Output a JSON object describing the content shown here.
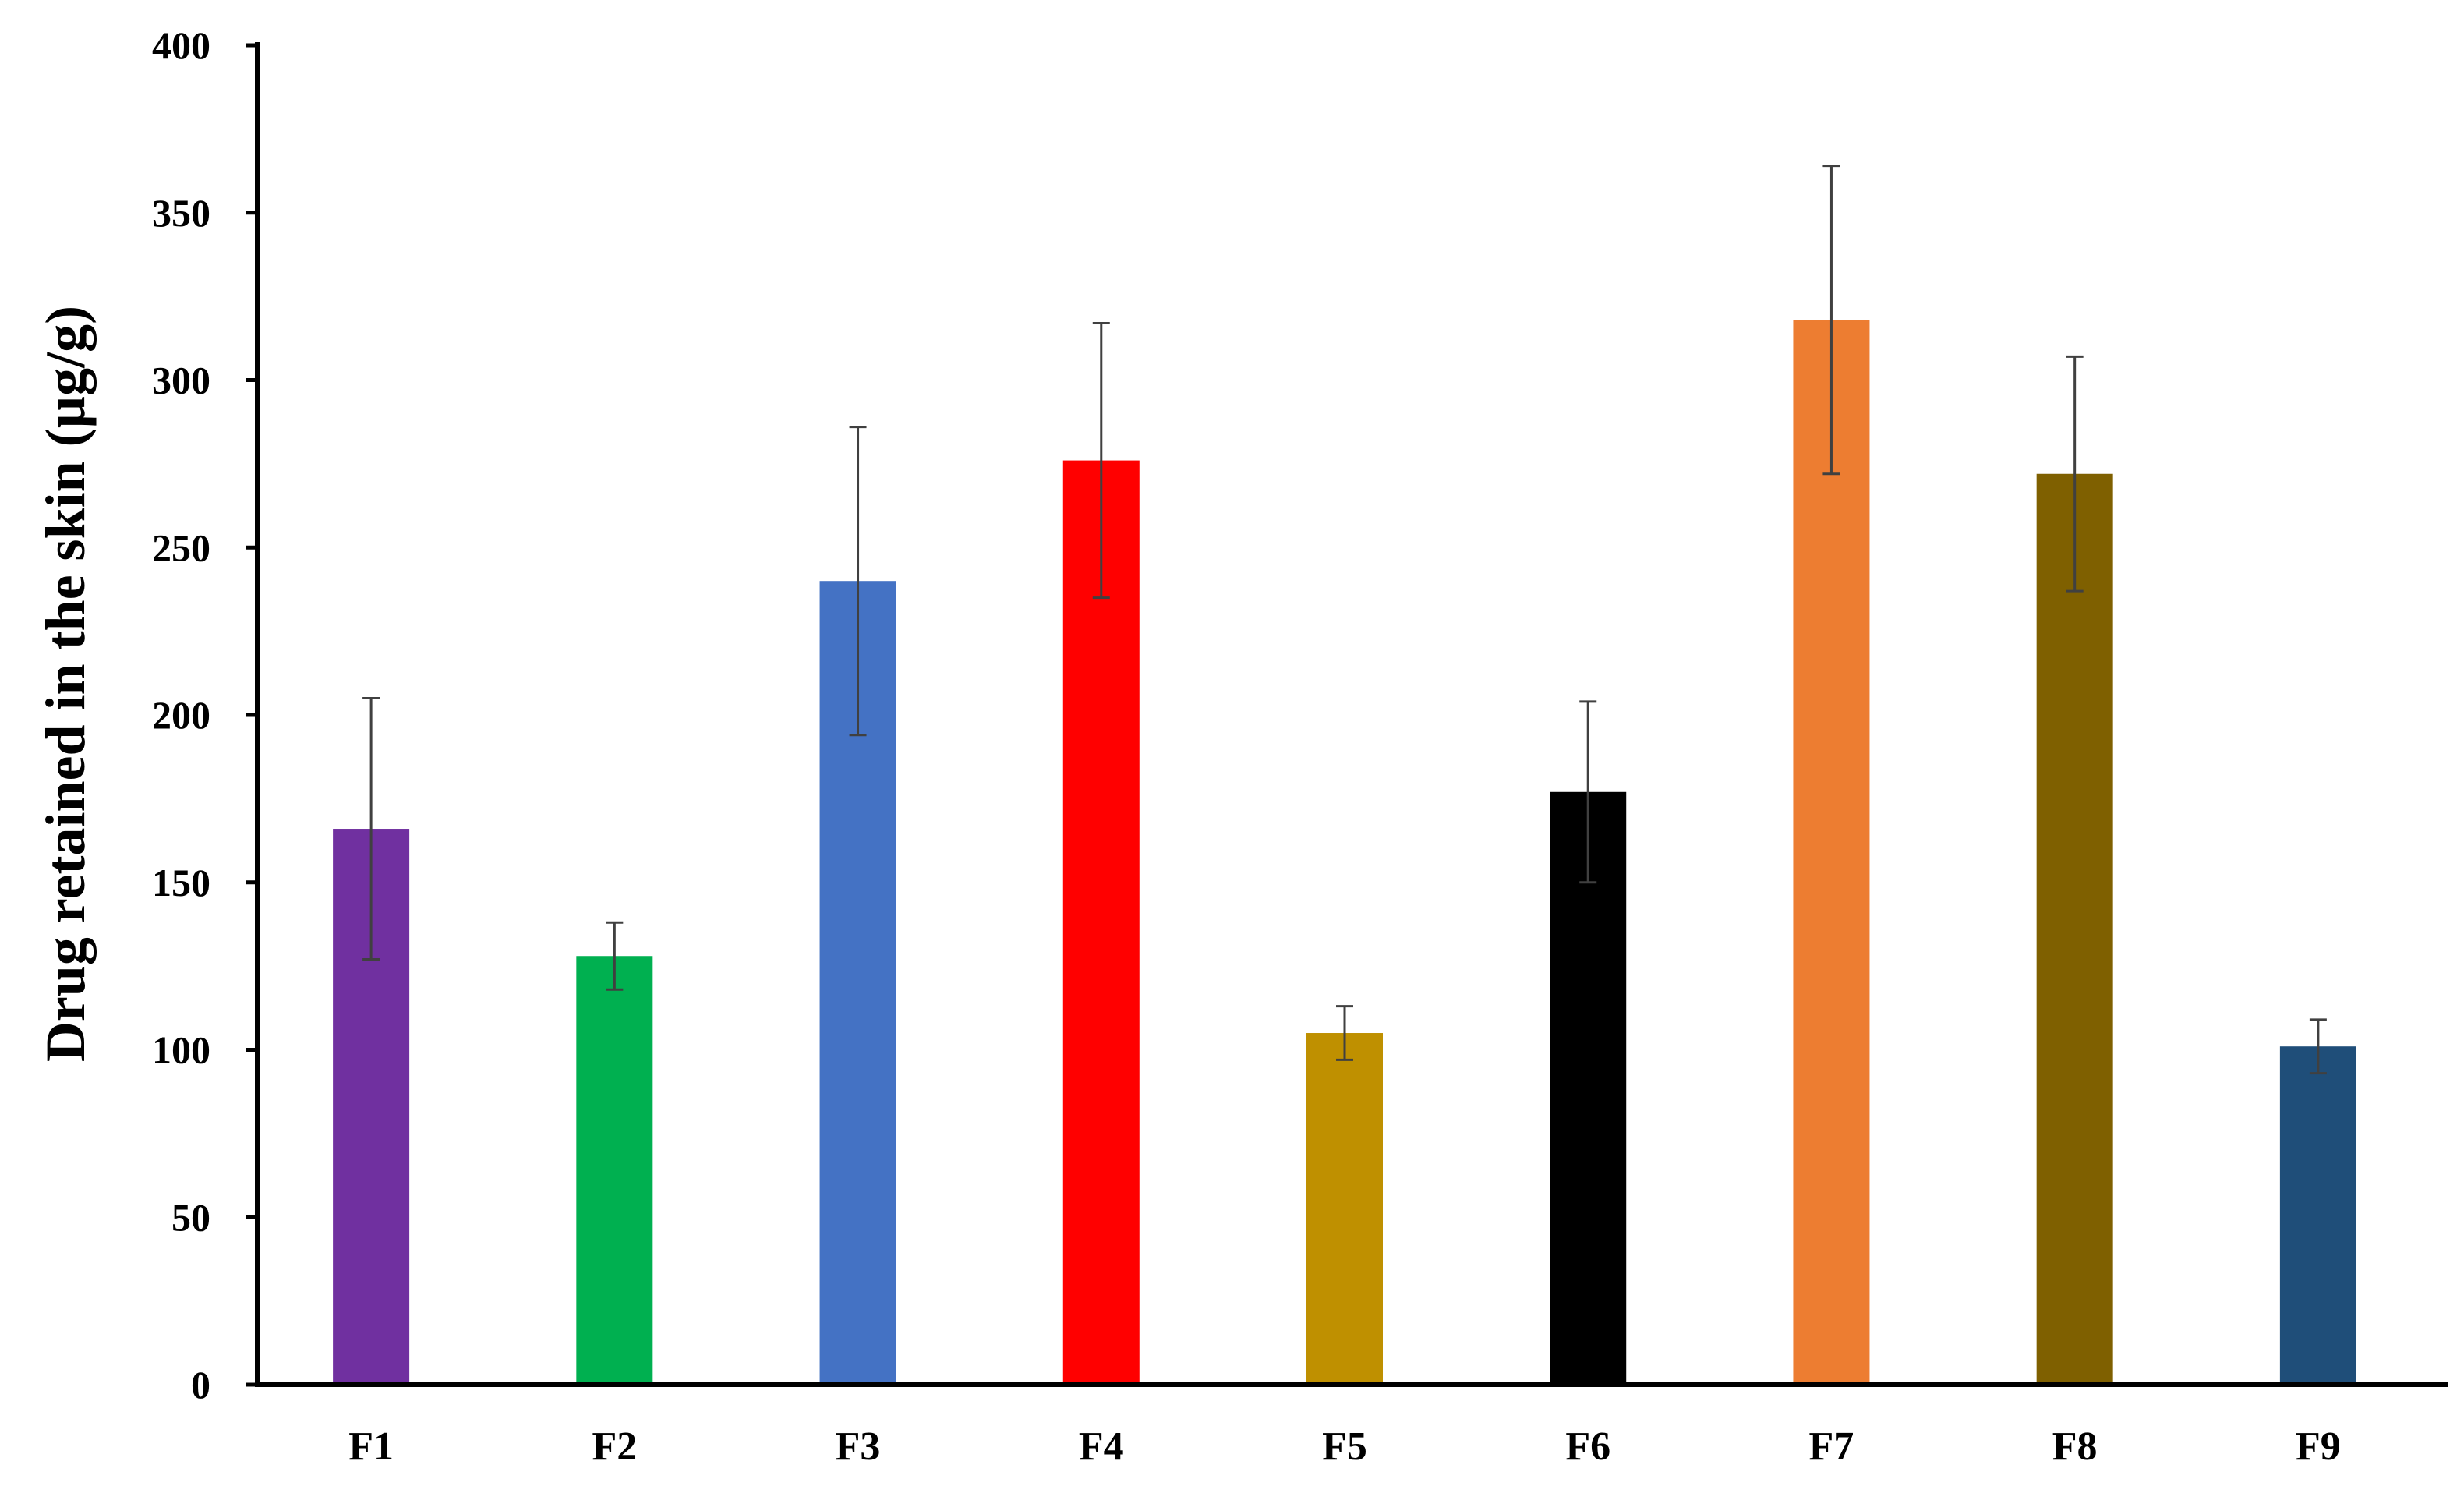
{
  "chart_data": {
    "type": "bar",
    "title": "",
    "xlabel": "",
    "ylabel": "Drug retained in the skin (µg/g)",
    "ylim": [
      0,
      400
    ],
    "yticks": [
      0,
      50,
      100,
      150,
      200,
      250,
      300,
      350,
      400
    ],
    "grid": false,
    "legend": "none",
    "categories": [
      "F1",
      "F2",
      "F3",
      "F4",
      "F5",
      "F6",
      "F7",
      "F8",
      "F9"
    ],
    "values": [
      166,
      128,
      240,
      276,
      105,
      177,
      318,
      272,
      101
    ],
    "error": [
      39,
      10,
      46,
      41,
      8,
      27,
      46,
      35,
      8
    ],
    "colors": [
      "#7030A0",
      "#00B050",
      "#4472C4",
      "#FF0000",
      "#BF9000",
      "#000000",
      "#ED7D31",
      "#7F6000",
      "#1F4E79"
    ]
  }
}
